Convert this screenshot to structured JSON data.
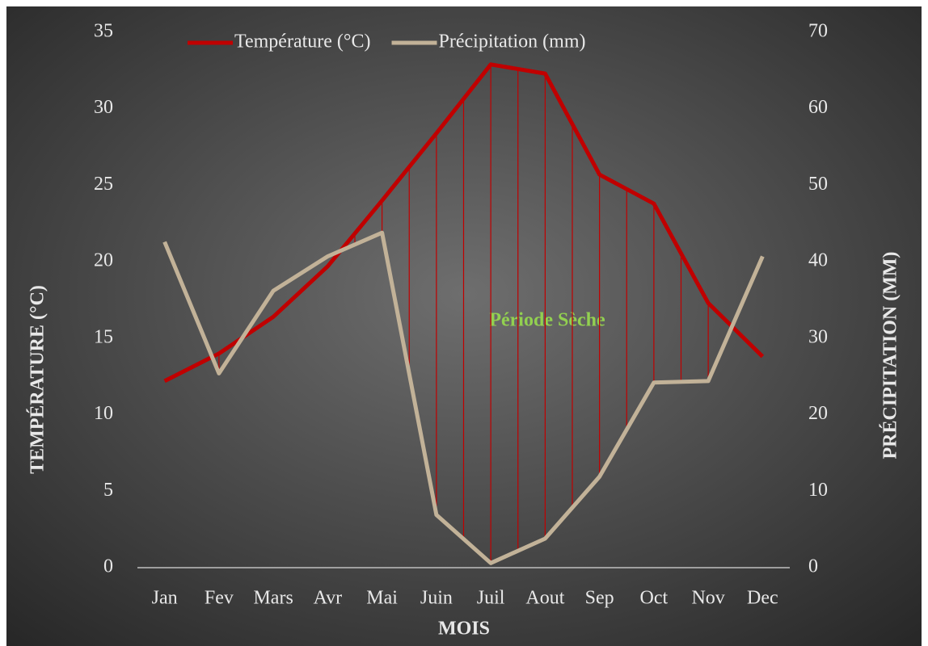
{
  "chart_data": {
    "type": "line",
    "categories": [
      "Jan",
      "Fev",
      "Mars",
      "Avr",
      "Mai",
      "Juin",
      "Juil",
      "Aout",
      "Sep",
      "Oct",
      "Nov",
      "Dec"
    ],
    "series": [
      {
        "name": "Température (°C)",
        "color": "#c00000",
        "values": [
          12.2,
          14.0,
          16.4,
          19.7,
          24.0,
          28.4,
          32.9,
          32.3,
          25.7,
          23.8,
          17.3,
          13.8
        ]
      },
      {
        "name": "Précipitation (mm)",
        "color": "#c2b298",
        "axis": "y2",
        "values": [
          42.6,
          25.4,
          36.2,
          40.7,
          43.8,
          6.9,
          0.6,
          3.8,
          11.9,
          24.2,
          24.4,
          40.7
        ]
      }
    ],
    "ylim": [
      0,
      35
    ],
    "yticks": [
      0,
      5,
      10,
      15,
      20,
      25,
      30,
      35
    ],
    "y2lim": [
      0,
      70
    ],
    "y2ticks": [
      0,
      10,
      20,
      30,
      40,
      50,
      60,
      70
    ],
    "ylabel": "TEMPÉRATURE (°C)",
    "y2label": "PRÉCIPITATION (MM)",
    "xlabel": "MOIS",
    "annotation": "Période Sèche",
    "legend": "top"
  }
}
